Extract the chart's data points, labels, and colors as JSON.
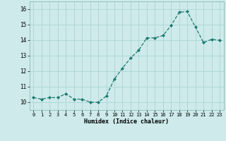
{
  "x": [
    0,
    1,
    2,
    3,
    4,
    5,
    6,
    7,
    8,
    9,
    10,
    11,
    12,
    13,
    14,
    15,
    16,
    17,
    18,
    19,
    20,
    21,
    22,
    23
  ],
  "y": [
    10.3,
    10.2,
    10.3,
    10.3,
    10.55,
    10.2,
    10.2,
    10.0,
    10.0,
    10.4,
    11.5,
    12.2,
    12.85,
    13.35,
    14.15,
    14.15,
    14.3,
    14.95,
    15.8,
    15.85,
    14.85,
    13.85,
    14.05,
    14.0
  ],
  "xlabel": "Humidex (Indice chaleur)",
  "xlim": [
    -0.5,
    23.5
  ],
  "ylim": [
    9.5,
    16.5
  ],
  "yticks": [
    10,
    11,
    12,
    13,
    14,
    15,
    16
  ],
  "xticks": [
    0,
    1,
    2,
    3,
    4,
    5,
    6,
    7,
    8,
    9,
    10,
    11,
    12,
    13,
    14,
    15,
    16,
    17,
    18,
    19,
    20,
    21,
    22,
    23
  ],
  "line_color": "#1a7a6e",
  "marker_color": "#1a7a6e",
  "bg_color": "#ceeaea",
  "grid_color": "#b0d8d8",
  "font_family": "monospace"
}
